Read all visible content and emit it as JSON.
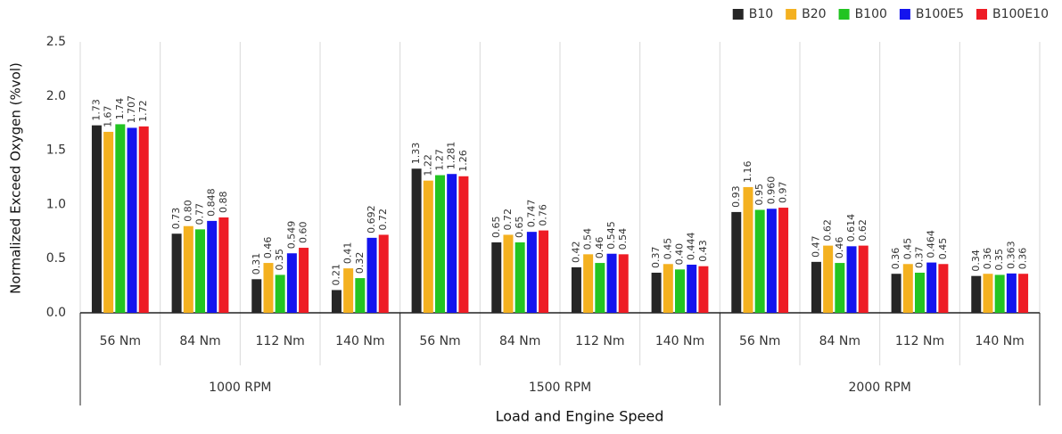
{
  "chart_data": {
    "type": "bar",
    "x_label": "Load and Engine Speed",
    "y_label": "Normalized Exceed Oxygen (%vol)",
    "categories": [
      "56 Nm",
      "84 Nm",
      "112 Nm",
      "140 Nm",
      "56 Nm",
      "84 Nm",
      "112 Nm",
      "140 Nm",
      "56 Nm",
      "84 Nm",
      "112 Nm",
      "140 Nm"
    ],
    "groups": [
      "1000 RPM",
      "1500 RPM",
      "2000 RPM"
    ],
    "ylim": [
      0,
      2.5
    ],
    "yticks": [
      {
        "value": 0,
        "label": "0.0"
      },
      0.5,
      {
        "value": 1,
        "label": "1.0"
      },
      1.5,
      {
        "value": 2,
        "label": "2.0"
      },
      2.5
    ],
    "grid": true,
    "legend": "top-right",
    "series": [
      {
        "name": "B10",
        "color": "#262626",
        "values": [
          1.73,
          0.73,
          0.31,
          0.21,
          1.33,
          0.65,
          0.42,
          0.37,
          0.93,
          0.47,
          0.36,
          0.34
        ],
        "value_labels": [
          "1.73",
          "0.73",
          "0.31",
          "0.21",
          "1.33",
          "0.65",
          "0.42",
          "0.37",
          "0.93",
          "0.47",
          "0.36",
          "0.34"
        ]
      },
      {
        "name": "B20",
        "color": "#f4b120",
        "values": [
          1.67,
          0.8,
          0.46,
          0.41,
          1.22,
          0.72,
          0.54,
          0.45,
          1.16,
          0.62,
          0.45,
          0.36
        ],
        "value_labels": [
          "1.67",
          "0.80",
          "0.46",
          "0.41",
          "1.22",
          "0.72",
          "0.54",
          "0.45",
          "1.16",
          "0.62",
          "0.45",
          "0.36"
        ]
      },
      {
        "name": "B100",
        "color": "#22c422",
        "values": [
          1.74,
          0.77,
          0.35,
          0.32,
          1.27,
          0.65,
          0.46,
          0.4,
          0.95,
          0.46,
          0.37,
          0.35
        ],
        "value_labels": [
          "1.74",
          "0.77",
          "0.35",
          "0.32",
          "1.27",
          "0.65",
          "0.46",
          "0.40",
          "0.95",
          "0.46",
          "0.37",
          "0.35"
        ]
      },
      {
        "name": "B100E5",
        "color": "#1414ee",
        "values": [
          1.707,
          0.848,
          0.549,
          0.692,
          1.281,
          0.747,
          0.545,
          0.444,
          0.96,
          0.614,
          0.464,
          0.363
        ],
        "value_labels": [
          "1.707",
          "0.848",
          "0.549",
          "0.692",
          "1.281",
          "0.747",
          "0.545",
          "0.444",
          "0.960",
          "0.614",
          "0.464",
          "0.363"
        ]
      },
      {
        "name": "B100E10",
        "color": "#ee1c25",
        "values": [
          1.72,
          0.88,
          0.6,
          0.72,
          1.26,
          0.76,
          0.54,
          0.43,
          0.97,
          0.62,
          0.45,
          0.36
        ],
        "value_labels": [
          "1.72",
          "0.88",
          "0.60",
          "0.72",
          "1.26",
          "0.76",
          "0.54",
          "0.43",
          "0.97",
          "0.62",
          "0.45",
          "0.36"
        ]
      }
    ]
  }
}
